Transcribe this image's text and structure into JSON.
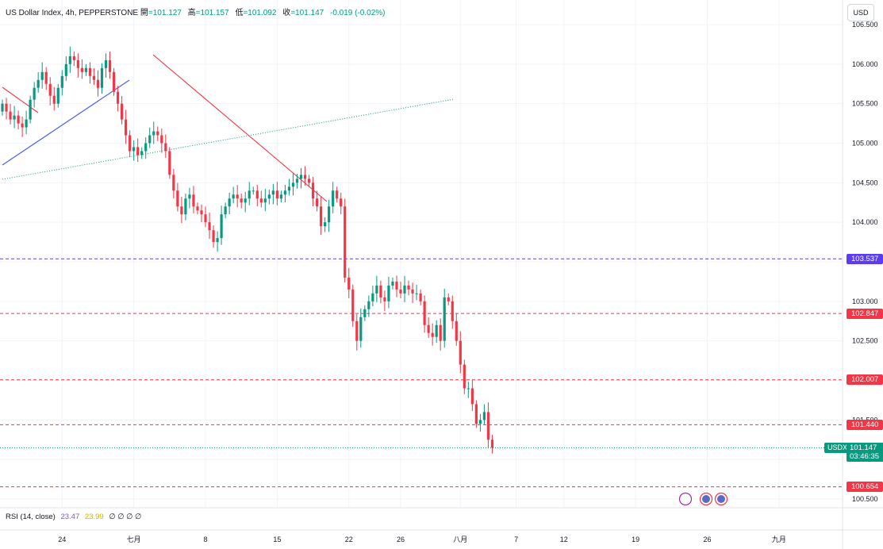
{
  "header": {
    "symbol": "US Dollar Index, 4h, PEPPERSTONE",
    "open_label": "開",
    "open": "=101.127",
    "high_label": "高",
    "high": "=101.157",
    "low_label": "低",
    "low": "=101.092",
    "close_label": "收",
    "close": "=101.147",
    "change": "-0.019 (-0.02%)"
  },
  "currency_button": "USD",
  "rsi": {
    "label": "RSI (14, close)",
    "value1": "23.47",
    "value2": "23.99",
    "zeros": "∅ ∅ ∅ ∅"
  },
  "colors": {
    "up": "#089981",
    "down": "#f23645",
    "red_line": "#f23645",
    "blue_line": "#2962ff",
    "purple_tag": "#5b3cf0"
  },
  "chart_data": {
    "type": "candlestick",
    "ylim": [
      100.4,
      106.55
    ],
    "y_ticks": [
      "106.500",
      "106.000",
      "105.500",
      "105.000",
      "104.500",
      "104.000",
      "103.000",
      "102.500",
      "101.500",
      "100.500"
    ],
    "x_ticks": [
      {
        "label": "24",
        "bar": 15
      },
      {
        "label": "七月",
        "bar": 33
      },
      {
        "label": "8",
        "bar": 51
      },
      {
        "label": "15",
        "bar": 69
      },
      {
        "label": "22",
        "bar": 87
      },
      {
        "label": "26",
        "bar": 100
      },
      {
        "label": "八月",
        "bar": 115
      },
      {
        "label": "7",
        "bar": 129
      },
      {
        "label": "12",
        "bar": 141
      },
      {
        "label": "19",
        "bar": 159
      },
      {
        "label": "26",
        "bar": 177
      },
      {
        "label": "九月",
        "bar": 195
      }
    ],
    "bars_per_step": 5.02,
    "first_bar_x": 3,
    "closes": [
      105.5,
      105.4,
      105.3,
      105.35,
      105.25,
      105.2,
      105.3,
      105.55,
      105.7,
      105.8,
      105.9,
      105.75,
      105.6,
      105.5,
      105.7,
      105.85,
      106.0,
      106.1,
      106.05,
      105.95,
      105.9,
      105.95,
      105.85,
      105.8,
      105.7,
      105.95,
      106.05,
      105.9,
      105.65,
      105.5,
      105.3,
      105.1,
      104.9,
      104.95,
      104.85,
      104.9,
      105.0,
      105.1,
      105.15,
      105.1,
      105.0,
      104.9,
      104.6,
      104.4,
      104.2,
      104.1,
      104.3,
      104.35,
      104.2,
      104.15,
      104.1,
      104.0,
      103.9,
      103.75,
      103.8,
      104.1,
      104.2,
      104.3,
      104.35,
      104.3,
      104.25,
      104.3,
      104.4,
      104.4,
      104.3,
      104.25,
      104.3,
      104.35,
      104.4,
      104.3,
      104.35,
      104.4,
      104.45,
      104.5,
      104.55,
      104.6,
      104.55,
      104.5,
      104.3,
      104.2,
      103.95,
      104.0,
      104.2,
      104.4,
      104.3,
      104.2,
      103.3,
      103.15,
      102.75,
      102.5,
      102.8,
      102.9,
      103.0,
      103.1,
      103.2,
      103.05,
      103.0,
      103.2,
      103.25,
      103.15,
      103.1,
      103.2,
      103.15,
      103.1,
      103.1,
      103.0,
      102.7,
      102.6,
      102.55,
      102.7,
      102.5,
      103.05,
      103.0,
      102.75,
      102.5,
      102.2,
      101.9,
      101.9,
      101.7,
      101.45,
      101.5,
      101.6,
      101.25,
      101.15
    ],
    "annotations": {
      "horizontal_levels": [
        {
          "value": "103.537",
          "color": "#5b3cf0"
        },
        {
          "value": "102.847",
          "color": "#f23645"
        },
        {
          "value": "102.007",
          "color": "#f23645"
        },
        {
          "value": "101.440",
          "color": "#f23645"
        },
        {
          "value": "100.654",
          "color": "#f23645"
        }
      ],
      "last_price": {
        "symbol": "USDX",
        "value": "101.147",
        "countdown": "03:46:35"
      }
    }
  }
}
